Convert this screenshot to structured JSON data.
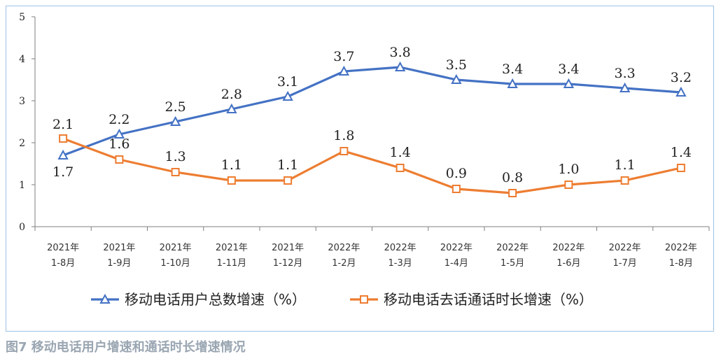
{
  "chart_data": {
    "type": "line",
    "title": "图7 移动电话用户增速和通话时长增速情况",
    "categories": [
      [
        "2021年",
        "1-8月"
      ],
      [
        "2021年",
        "1-9月"
      ],
      [
        "2021年",
        "1-10月"
      ],
      [
        "2021年",
        "1-11月"
      ],
      [
        "2021年",
        "1-12月"
      ],
      [
        "2022年",
        "1-2月"
      ],
      [
        "2022年",
        "1-3月"
      ],
      [
        "2022年",
        "1-4月"
      ],
      [
        "2022年",
        "1-5月"
      ],
      [
        "2022年",
        "1-6月"
      ],
      [
        "2022年",
        "1-7月"
      ],
      [
        "2022年",
        "1-8月"
      ]
    ],
    "ylim": [
      0,
      5
    ],
    "yticks": [
      "0",
      "1",
      "2",
      "3",
      "4",
      "5"
    ],
    "xlabel": "",
    "ylabel": "",
    "legend_position": "bottom",
    "series": [
      {
        "name": "移动电话用户总数增速（%）",
        "color": "#4472c4",
        "marker": "triangle",
        "values": [
          1.7,
          2.2,
          2.5,
          2.8,
          3.1,
          3.7,
          3.8,
          3.5,
          3.4,
          3.4,
          3.3,
          3.2
        ],
        "labels": [
          "1.7",
          "2.2",
          "2.5",
          "2.8",
          "3.1",
          "3.7",
          "3.8",
          "3.5",
          "3.4",
          "3.4",
          "3.3",
          "3.2"
        ]
      },
      {
        "name": "移动电话去话通话时长增速（%）",
        "color": "#ed7d31",
        "marker": "square",
        "values": [
          2.1,
          1.6,
          1.3,
          1.1,
          1.1,
          1.8,
          1.4,
          0.9,
          0.8,
          1.0,
          1.1,
          1.4
        ],
        "labels": [
          "2.1",
          "1.6",
          "1.3",
          "1.1",
          "1.1",
          "1.8",
          "1.4",
          "0.9",
          "0.8",
          "1.0",
          "1.1",
          "1.4"
        ]
      }
    ]
  },
  "caption": "图7 移动电话用户增速和通话时长增速情况"
}
